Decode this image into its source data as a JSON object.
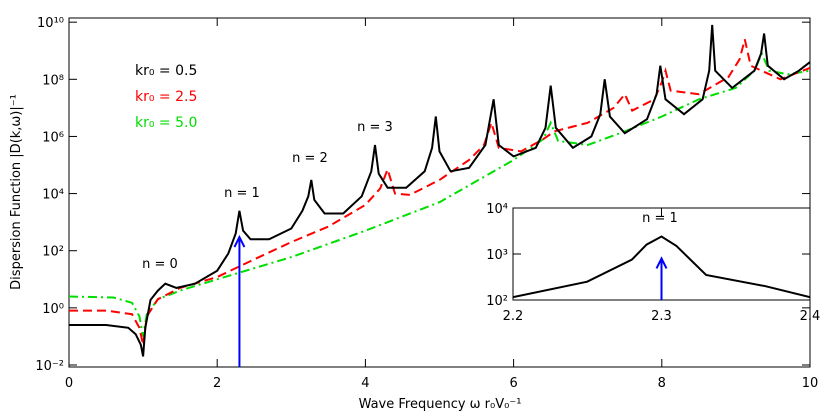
{
  "chart_data": [
    {
      "type": "line",
      "ylog": true,
      "ylabel": "Dispersion Function |D(k,ω)|⁻¹",
      "xlabel": "Wave Frequency  ω r₀V₀⁻¹",
      "xlim": [
        0,
        10
      ],
      "xticks": [
        0,
        2,
        4,
        6,
        8,
        10
      ],
      "ylim": [
        0.0085,
        14000000000.0
      ],
      "yticks": [
        {
          "value": 0.01,
          "label": "10⁻²"
        },
        {
          "value": 1,
          "label": "10⁰"
        },
        {
          "value": 100,
          "label": "10²"
        },
        {
          "value": 10000,
          "label": "10⁴"
        },
        {
          "value": 1000000,
          "label": "10⁶"
        },
        {
          "value": 100000000,
          "label": "10⁸"
        },
        {
          "value": 10000000000,
          "label": "10¹⁰"
        }
      ],
      "annotations": [
        "n = 0",
        "n = 1",
        "n = 2",
        "n = 3"
      ],
      "arrow": {
        "x": 2.3,
        "y": 300,
        "color": "#0000ff"
      },
      "series": [
        {
          "name": "kr₀ = 0.5",
          "color": "#000000",
          "style": "solid",
          "x": [
            0,
            0.5,
            0.8,
            0.9,
            0.97,
            1.0,
            1.03,
            1.1,
            1.2,
            1.3,
            1.45,
            1.7,
            2.0,
            2.15,
            2.25,
            2.3,
            2.35,
            2.45,
            2.7,
            3.0,
            3.15,
            3.23,
            3.27,
            3.31,
            3.45,
            3.7,
            3.95,
            4.08,
            4.13,
            4.18,
            4.3,
            4.55,
            4.8,
            4.9,
            4.95,
            5.0,
            5.15,
            5.4,
            5.62,
            5.73,
            5.8,
            6.0,
            6.3,
            6.43,
            6.5,
            6.57,
            6.8,
            7.05,
            7.17,
            7.23,
            7.3,
            7.5,
            7.8,
            7.93,
            7.98,
            8.05,
            8.3,
            8.55,
            8.64,
            8.68,
            8.72,
            8.95,
            9.25,
            9.34,
            9.38,
            9.43,
            9.65,
            9.85,
            10
          ],
          "values": [
            0.25,
            0.25,
            0.2,
            0.12,
            0.05,
            0.02,
            0.2,
            1.9,
            4,
            7,
            5,
            7,
            20,
            80,
            400,
            2500,
            500,
            250,
            250,
            600,
            2500,
            8000,
            30000,
            6000,
            2000,
            2000,
            8000,
            60000,
            500000,
            50000,
            16000,
            16000,
            60000,
            400000,
            5000000,
            300000,
            60000,
            80000,
            500000,
            20000000,
            500000,
            200000,
            400000,
            2000000,
            60000000,
            2000000,
            400000,
            1000000,
            6000000,
            100000000,
            5000000,
            1300000,
            4000000,
            30000000,
            300000000,
            20000000,
            6000000,
            20000000,
            200000000,
            8000000000,
            200000000,
            50000000,
            200000000,
            800000000,
            4000000000,
            300000000,
            100000000,
            200000000,
            400000000
          ]
        },
        {
          "name": "kr₀ = 2.5",
          "color": "#ff0000",
          "style": "dashed",
          "x": [
            0,
            0.5,
            0.85,
            0.95,
            1.0,
            1.05,
            1.2,
            1.5,
            2.0,
            2.5,
            3.0,
            3.5,
            4.0,
            4.2,
            4.3,
            4.4,
            4.6,
            5.0,
            5.4,
            5.6,
            5.7,
            5.8,
            6.1,
            6.4,
            6.55,
            7.0,
            7.35,
            7.5,
            7.6,
            7.9,
            8.0,
            8.05,
            8.12,
            8.5,
            8.9,
            9.05,
            9.12,
            9.2,
            9.6,
            10
          ],
          "values": [
            0.8,
            0.8,
            0.6,
            0.2,
            0.05,
            0.5,
            2,
            5,
            12,
            50,
            200,
            700,
            4000,
            15000,
            70000,
            10000,
            9000,
            30000,
            150000,
            500000,
            3000000,
            400000,
            300000,
            800000,
            1500000,
            3000000,
            10000000,
            30000000,
            8000000,
            20000000,
            80000000,
            200000000,
            40000000,
            30000000,
            120000000,
            500000000,
            2500000000,
            300000000,
            100000000,
            250000000
          ]
        },
        {
          "name": "kr₀ = 5.0",
          "color": "#00dd00",
          "style": "dashdot",
          "x": [
            0,
            0.6,
            0.85,
            0.95,
            1.0,
            1.05,
            1.2,
            1.5,
            2.0,
            3.0,
            4.0,
            5.0,
            6.0,
            6.4,
            6.5,
            6.6,
            7.0,
            7.5,
            8.0,
            8.5,
            9.0,
            9.25,
            9.35,
            9.45,
            9.7,
            10
          ],
          "values": [
            2.5,
            2.3,
            1.5,
            0.5,
            0.1,
            0.6,
            2,
            4,
            10,
            60,
            500,
            5000,
            150000,
            800000,
            3000000,
            700000,
            500000,
            1500000,
            5000000,
            20000000,
            50000000,
            200000000,
            800000000,
            200000000,
            150000000,
            200000000
          ]
        }
      ]
    },
    {
      "type": "line",
      "ylog": true,
      "xlim": [
        2.2,
        2.4
      ],
      "xticks": [
        2.2,
        2.3,
        2.4
      ],
      "ylim": [
        100,
        10000
      ],
      "yticks": [
        {
          "value": 100,
          "label": "10²"
        },
        {
          "value": 1000,
          "label": "10³"
        },
        {
          "value": 10000,
          "label": "10⁴"
        }
      ],
      "annotations": [
        "n = 1"
      ],
      "arrow": {
        "x": 2.3,
        "y": 800,
        "color": "#0000ff"
      },
      "series": [
        {
          "color": "#000000",
          "style": "solid",
          "x": [
            2.2,
            2.25,
            2.28,
            2.29,
            2.3,
            2.31,
            2.33,
            2.37,
            2.4
          ],
          "values": [
            115,
            250,
            750,
            1600,
            2400,
            1500,
            350,
            200,
            115
          ]
        }
      ]
    }
  ]
}
